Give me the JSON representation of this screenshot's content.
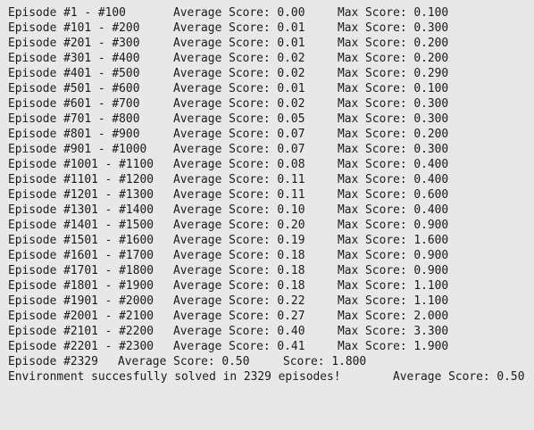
{
  "log": {
    "rows": [
      {
        "range": "Episode #1 - #100",
        "avg": "Average Score: 0.00",
        "max": "Max Score: 0.100"
      },
      {
        "range": "Episode #101 - #200",
        "avg": "Average Score: 0.01",
        "max": "Max Score: 0.300"
      },
      {
        "range": "Episode #201 - #300",
        "avg": "Average Score: 0.01",
        "max": "Max Score: 0.200"
      },
      {
        "range": "Episode #301 - #400",
        "avg": "Average Score: 0.02",
        "max": "Max Score: 0.200"
      },
      {
        "range": "Episode #401 - #500",
        "avg": "Average Score: 0.02",
        "max": "Max Score: 0.290"
      },
      {
        "range": "Episode #501 - #600",
        "avg": "Average Score: 0.01",
        "max": "Max Score: 0.100"
      },
      {
        "range": "Episode #601 - #700",
        "avg": "Average Score: 0.02",
        "max": "Max Score: 0.300"
      },
      {
        "range": "Episode #701 - #800",
        "avg": "Average Score: 0.05",
        "max": "Max Score: 0.300"
      },
      {
        "range": "Episode #801 - #900",
        "avg": "Average Score: 0.07",
        "max": "Max Score: 0.200"
      },
      {
        "range": "Episode #901 - #1000",
        "avg": "Average Score: 0.07",
        "max": "Max Score: 0.300"
      },
      {
        "range": "Episode #1001 - #1100",
        "avg": "Average Score: 0.08",
        "max": "Max Score: 0.400"
      },
      {
        "range": "Episode #1101 - #1200",
        "avg": "Average Score: 0.11",
        "max": "Max Score: 0.400"
      },
      {
        "range": "Episode #1201 - #1300",
        "avg": "Average Score: 0.11",
        "max": "Max Score: 0.600"
      },
      {
        "range": "Episode #1301 - #1400",
        "avg": "Average Score: 0.10",
        "max": "Max Score: 0.400"
      },
      {
        "range": "Episode #1401 - #1500",
        "avg": "Average Score: 0.20",
        "max": "Max Score: 0.900"
      },
      {
        "range": "Episode #1501 - #1600",
        "avg": "Average Score: 0.19",
        "max": "Max Score: 1.600"
      },
      {
        "range": "Episode #1601 - #1700",
        "avg": "Average Score: 0.18",
        "max": "Max Score: 0.900"
      },
      {
        "range": "Episode #1701 - #1800",
        "avg": "Average Score: 0.18",
        "max": "Max Score: 0.900"
      },
      {
        "range": "Episode #1801 - #1900",
        "avg": "Average Score: 0.18",
        "max": "Max Score: 1.100"
      },
      {
        "range": "Episode #1901 - #2000",
        "avg": "Average Score: 0.22",
        "max": "Max Score: 1.100"
      },
      {
        "range": "Episode #2001 - #2100",
        "avg": "Average Score: 0.27",
        "max": "Max Score: 2.000"
      },
      {
        "range": "Episode #2101 - #2200",
        "avg": "Average Score: 0.40",
        "max": "Max Score: 3.300"
      },
      {
        "range": "Episode #2201 - #2300",
        "avg": "Average Score: 0.41",
        "max": "Max Score: 1.900"
      }
    ],
    "final": {
      "episode": "Episode #2329",
      "avg": "Average Score: 0.50",
      "score": "Score: 1.800"
    },
    "solved": {
      "message": "Environment succesfully solved in 2329 episodes!",
      "avg": "Average Score: 0.50"
    }
  }
}
